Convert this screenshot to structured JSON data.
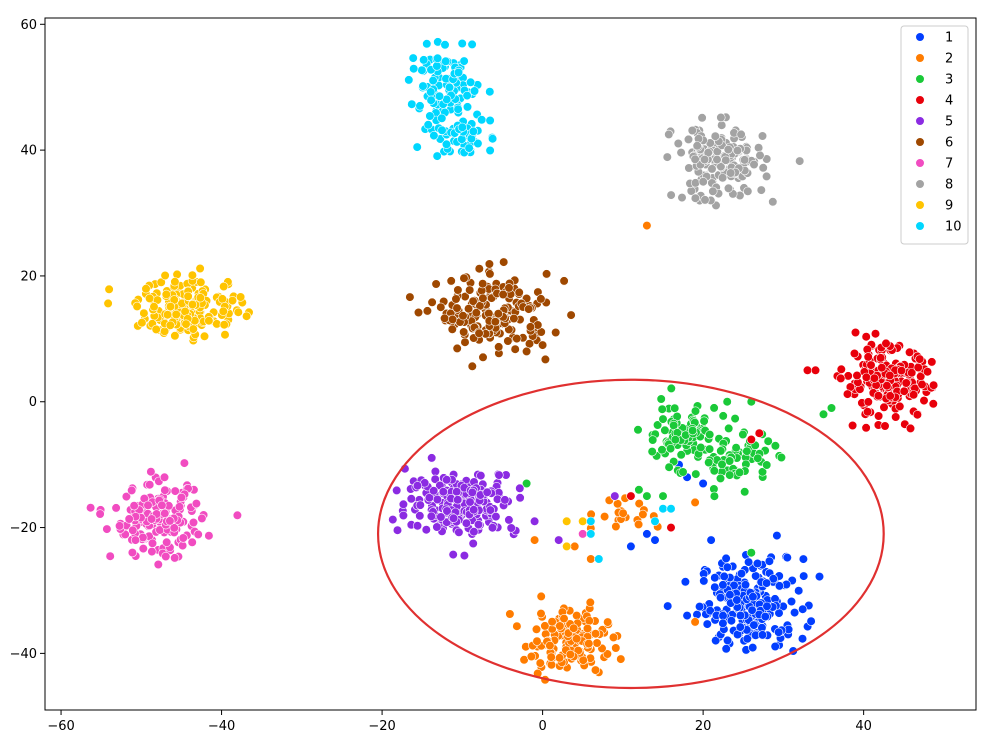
{
  "chart_data": {
    "type": "scatter",
    "title": "",
    "xlabel": "",
    "ylabel": "",
    "xlim": [
      -62,
      54
    ],
    "ylim": [
      -49,
      61
    ],
    "xticks": [
      -60,
      -40,
      -20,
      0,
      20,
      40
    ],
    "yticks": [
      -40,
      -20,
      0,
      20,
      40,
      60
    ],
    "grid": false,
    "legend_position": "top-right",
    "series": [
      {
        "name": "1",
        "color": "#023eff",
        "clusters": [
          {
            "cx": 26,
            "cy": -32,
            "sx": 3.2,
            "sy": 3.6,
            "n": 220
          }
        ],
        "points": [
          [
            17,
            -10
          ],
          [
            18,
            -12
          ],
          [
            20,
            -13
          ],
          [
            21,
            -22
          ],
          [
            13,
            -21
          ],
          [
            14,
            -22
          ],
          [
            11,
            -23
          ],
          [
            18,
            -34
          ],
          [
            6,
            -19
          ]
        ]
      },
      {
        "name": "2",
        "color": "#ff7c00",
        "clusters": [
          {
            "cx": 3,
            "cy": -38,
            "sx": 2.6,
            "sy": 2.6,
            "n": 150
          },
          {
            "cx": 10,
            "cy": -18,
            "sx": 1.6,
            "sy": 1.6,
            "n": 20
          }
        ],
        "points": [
          [
            13,
            28
          ],
          [
            -1,
            -22
          ],
          [
            4,
            -23
          ],
          [
            19,
            -16
          ],
          [
            19,
            -35
          ],
          [
            6,
            -25
          ]
        ]
      },
      {
        "name": "3",
        "color": "#1ac938",
        "clusters": [
          {
            "cx": 17,
            "cy": -5,
            "sx": 2.4,
            "sy": 2.4,
            "n": 90
          },
          {
            "cx": 24,
            "cy": -9,
            "sx": 2.2,
            "sy": 2,
            "n": 70
          }
        ],
        "points": [
          [
            35,
            -2
          ],
          [
            36,
            -1
          ],
          [
            -2,
            -13
          ],
          [
            12,
            -14
          ],
          [
            13,
            -15
          ],
          [
            15,
            -15
          ],
          [
            23,
            0
          ],
          [
            26,
            0
          ],
          [
            26,
            -24
          ],
          [
            29,
            -7
          ]
        ]
      },
      {
        "name": "4",
        "color": "#e8000b",
        "clusters": [
          {
            "cx": 43,
            "cy": 3,
            "sx": 2.7,
            "sy": 2.8,
            "n": 200
          }
        ],
        "points": [
          [
            33,
            5
          ],
          [
            34,
            5
          ],
          [
            26,
            -6
          ],
          [
            27,
            -5
          ],
          [
            11,
            -15
          ],
          [
            16,
            -20
          ]
        ]
      },
      {
        "name": "5",
        "color": "#8b2be2",
        "clusters": [
          {
            "cx": -10,
            "cy": -16,
            "sx": 3.4,
            "sy": 2.5,
            "n": 220
          }
        ],
        "points": [
          [
            -1,
            -19
          ],
          [
            -1,
            -19
          ],
          [
            3,
            -19
          ],
          [
            2,
            -22
          ],
          [
            9,
            -15
          ],
          [
            7,
            -25
          ]
        ]
      },
      {
        "name": "6",
        "color": "#9f4800",
        "clusters": [
          {
            "cx": -6,
            "cy": 14,
            "sx": 3.5,
            "sy": 3,
            "n": 180
          }
        ],
        "points": [
          [
            -2,
            8
          ],
          [
            0,
            9
          ]
        ]
      },
      {
        "name": "7",
        "color": "#f14cc1",
        "clusters": [
          {
            "cx": -48,
            "cy": -19,
            "sx": 2.8,
            "sy": 2.8,
            "n": 170
          }
        ],
        "points": [
          [
            5,
            -21
          ]
        ]
      },
      {
        "name": "8",
        "color": "#a3a3a3",
        "clusters": [
          {
            "cx": 22,
            "cy": 38,
            "sx": 2.8,
            "sy": 3,
            "n": 170
          }
        ],
        "points": []
      },
      {
        "name": "9",
        "color": "#ffc400",
        "clusters": [
          {
            "cx": -44,
            "cy": 15,
            "sx": 3.3,
            "sy": 2.4,
            "n": 180
          }
        ],
        "points": [
          [
            3,
            -19
          ],
          [
            5,
            -19
          ],
          [
            3,
            -23
          ]
        ]
      },
      {
        "name": "10",
        "color": "#00d7ff",
        "clusters": [
          {
            "cx": -12,
            "cy": 50,
            "sx": 2.2,
            "sy": 2.8,
            "n": 110
          },
          {
            "cx": -10,
            "cy": 42,
            "sx": 1.8,
            "sy": 1.6,
            "n": 50
          }
        ],
        "points": [
          [
            6,
            -21
          ],
          [
            7,
            -25
          ],
          [
            15,
            -17
          ],
          [
            16,
            -17
          ],
          [
            14,
            -19
          ],
          [
            6,
            -19
          ]
        ]
      }
    ],
    "annotation": {
      "type": "ellipse",
      "color": "#e03030",
      "cx": 11,
      "cy": -21,
      "rx": 31.5,
      "ry": 24.5
    }
  }
}
